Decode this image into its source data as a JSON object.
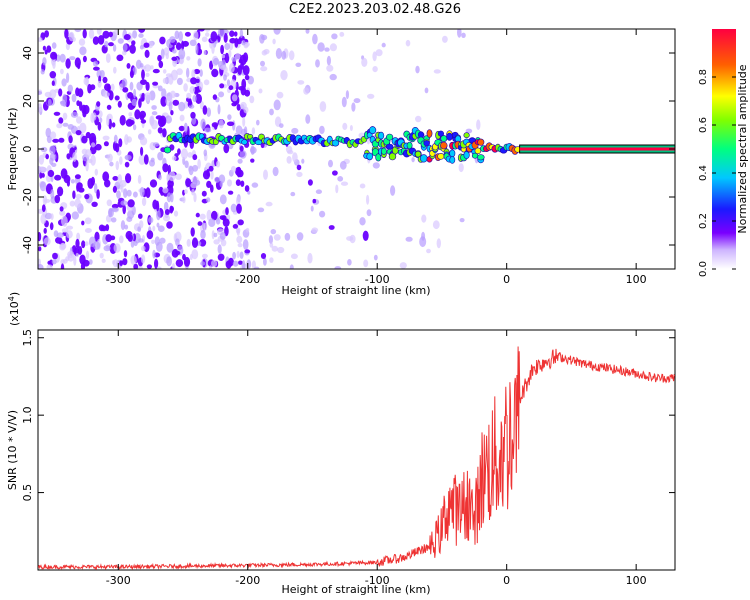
{
  "title": "C2E2.2023.203.02.48.G26",
  "chart_data": [
    {
      "type": "heatmap",
      "title": "C2E2.2023.203.02.48.G26",
      "xlabel": "Height of straight line (km)",
      "ylabel": "Frequency (Hz)",
      "xlim": [
        -362,
        130
      ],
      "ylim": [
        -50,
        50
      ],
      "xticks": [
        -300,
        -200,
        -100,
        0,
        100
      ],
      "yticks": [
        -40,
        -20,
        0,
        20,
        40
      ],
      "colorbar": {
        "label": "Normalized spectral amplitude",
        "ticks": [
          0.0,
          0.2,
          0.4,
          0.6,
          0.8
        ],
        "tick_labels": [
          "0.0",
          "0.2",
          "0.4",
          "0.6",
          "0.8"
        ],
        "range": [
          0,
          1
        ]
      },
      "features": {
        "noise_region_km": [
          -362,
          -100
        ],
        "signal_line": [
          {
            "x": -260,
            "f": 4.5
          },
          {
            "x": -200,
            "f": 4.0
          },
          {
            "x": -150,
            "f": 3.5
          },
          {
            "x": -110,
            "f": 3.0
          },
          {
            "x": -90,
            "f": 2.0
          },
          {
            "x": -60,
            "f": 1.5
          },
          {
            "x": -30,
            "f": 1.0
          },
          {
            "x": 0,
            "f": 0.5
          },
          {
            "x": 10,
            "f": 0.0
          },
          {
            "x": 130,
            "f": 0.0
          }
        ],
        "steady_line_start_km": 10
      }
    },
    {
      "type": "line",
      "xlabel": "Height of straight line (km)",
      "ylabel": "SNR (10 * V/V)",
      "y_multiplier_label": "(x10^4)",
      "xlim": [
        -362,
        130
      ],
      "ylim": [
        0,
        1.55
      ],
      "xticks": [
        -300,
        -200,
        -100,
        0,
        100
      ],
      "yticks": [
        0.5,
        1.0,
        1.5
      ],
      "ytick_labels": [
        "0.5",
        "1.0",
        "1.5"
      ],
      "series": [
        {
          "name": "SNR",
          "color": "#ee3333",
          "x": [
            -362,
            -300,
            -250,
            -200,
            -160,
            -130,
            -100,
            -80,
            -60,
            -50,
            -45,
            -40,
            -35,
            -30,
            -25,
            -20,
            -15,
            -10,
            -5,
            0,
            5,
            10,
            15,
            20,
            30,
            40,
            60,
            80,
            100,
            115,
            130
          ],
          "y": [
            0.02,
            0.02,
            0.025,
            0.03,
            0.035,
            0.04,
            0.05,
            0.08,
            0.15,
            0.3,
            0.5,
            0.45,
            0.42,
            0.55,
            0.35,
            0.65,
            0.75,
            0.8,
            0.85,
            0.95,
            1.05,
            1.1,
            1.2,
            1.3,
            1.35,
            1.38,
            1.33,
            1.3,
            1.27,
            1.24,
            1.24
          ]
        }
      ]
    }
  ],
  "tick_labels": {
    "x": [
      "-300",
      "-200",
      "-100",
      "0",
      "100"
    ],
    "y_top": [
      "40",
      "20",
      "0",
      "-20",
      "-40"
    ],
    "colorbar": [
      "0.0",
      "0.2",
      "0.4",
      "0.6",
      "0.8"
    ],
    "y_bottom": [
      "0.5",
      "1.0",
      "1.5"
    ]
  },
  "labels": {
    "top_xlabel": "Height of straight line (km)",
    "top_ylabel": "Frequency (Hz)",
    "colorbar_label": "Normalized spectral amplitude",
    "bottom_xlabel": "Height of straight line (km)",
    "bottom_ylabel": "SNR (10 * V/V)",
    "multiplier_base": "(x10",
    "multiplier_exp": "4",
    "multiplier_close": ")"
  },
  "colors": {
    "snr_line": "#ee3333",
    "noise": "#6a00ff",
    "signal_core": "#ff0044"
  }
}
